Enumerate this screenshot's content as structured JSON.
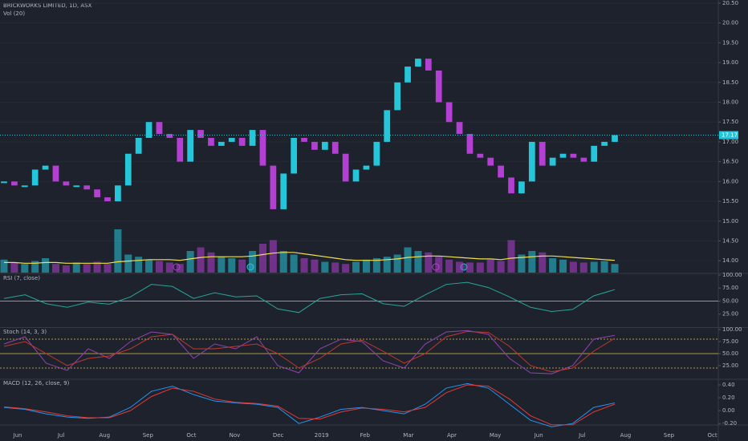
{
  "header": {
    "title": "BRICKWORKS LIMITED, 1D, ASX",
    "volume_label": "Vol (20)"
  },
  "x_axis": {
    "categories": [
      "Jun",
      "Jul",
      "Aug",
      "Sep",
      "Oct",
      "Nov",
      "Dec",
      "2019",
      "Feb",
      "Mar",
      "Apr",
      "May",
      "Jun",
      "Jul",
      "Aug",
      "Sep",
      "Oct"
    ]
  },
  "price": {
    "type": "candlestick",
    "ylim": [
      13.7,
      20.58
    ],
    "yticks": [
      {
        "value": 14,
        "label": "14.00"
      },
      {
        "value": 14.5,
        "label": "14.50"
      },
      {
        "value": 15,
        "label": "15.00"
      },
      {
        "value": 15.5,
        "label": "15.50"
      },
      {
        "value": 16,
        "label": "16.00"
      },
      {
        "value": 16.5,
        "label": "16.50"
      },
      {
        "value": 17,
        "label": "17.00"
      },
      {
        "value": 17.5,
        "label": "17.50"
      },
      {
        "value": 18,
        "label": "18.00"
      },
      {
        "value": 18.5,
        "label": "18.50"
      },
      {
        "value": 19,
        "label": "19.00"
      },
      {
        "value": 19.5,
        "label": "19.50"
      },
      {
        "value": 20,
        "label": "20.00"
      },
      {
        "value": 20.5,
        "label": "20.50"
      }
    ],
    "last": {
      "value": 17.17,
      "label": "17.17"
    },
    "up_color": "#26c6da",
    "down_color": "#b43fd3",
    "grid": true,
    "closes": [
      16.0,
      15.9,
      15.9,
      16.3,
      16.4,
      16.0,
      15.9,
      15.9,
      15.8,
      15.6,
      15.5,
      15.9,
      16.7,
      17.1,
      17.5,
      17.2,
      17.1,
      16.5,
      17.3,
      17.1,
      16.9,
      17.0,
      17.1,
      16.9,
      17.3,
      16.4,
      15.3,
      16.2,
      17.1,
      17.0,
      16.8,
      17.0,
      16.7,
      16.0,
      16.3,
      16.4,
      17.0,
      17.8,
      18.5,
      18.9,
      19.1,
      18.8,
      18.0,
      17.5,
      17.2,
      16.7,
      16.6,
      16.4,
      16.1,
      15.7,
      16.0,
      17.0,
      16.4,
      16.6,
      16.7,
      16.6,
      16.5,
      16.9,
      17.0,
      17.17
    ],
    "volume": [
      18,
      14,
      12,
      16,
      20,
      12,
      10,
      14,
      12,
      15,
      12,
      60,
      25,
      22,
      18,
      16,
      14,
      12,
      30,
      35,
      28,
      22,
      20,
      18,
      30,
      40,
      45,
      30,
      25,
      20,
      18,
      15,
      14,
      12,
      15,
      18,
      20,
      22,
      25,
      35,
      30,
      28,
      22,
      18,
      15,
      14,
      14,
      18,
      16,
      45,
      25,
      30,
      28,
      20,
      18,
      15,
      14,
      15,
      16,
      12
    ],
    "volume_ma": [
      14,
      14,
      13,
      13,
      14,
      14,
      13,
      13,
      13,
      13,
      13,
      15,
      16,
      17,
      18,
      18,
      18,
      17,
      19,
      21,
      22,
      22,
      22,
      22,
      23,
      25,
      27,
      28,
      28,
      26,
      24,
      22,
      20,
      18,
      17,
      17,
      17,
      18,
      19,
      21,
      22,
      23,
      23,
      22,
      21,
      20,
      19,
      19,
      18,
      20,
      21,
      22,
      23,
      23,
      22,
      21,
      20,
      19,
      18,
      17
    ],
    "volume_ma_color": "#f0e14a"
  },
  "rsi": {
    "type": "line",
    "label": "RSI (7, close)",
    "ylim": [
      0,
      101.5
    ],
    "yticks": [
      {
        "value": 25,
        "label": "25.00"
      },
      {
        "value": 50,
        "label": "50.00"
      },
      {
        "value": 75,
        "label": "75.00"
      },
      {
        "value": 100,
        "label": "100.00"
      }
    ],
    "levels": [
      50
    ],
    "level_color": "#d8c14a",
    "series": [
      {
        "color": "#26a69a",
        "values": [
          55,
          62,
          45,
          38,
          48,
          44,
          58,
          82,
          78,
          55,
          66,
          58,
          60,
          35,
          28,
          55,
          62,
          64,
          45,
          40,
          62,
          82,
          86,
          76,
          58,
          38,
          30,
          34,
          60,
          72
        ]
      }
    ]
  },
  "stoch": {
    "type": "line",
    "label": "Stoch (14, 3, 3)",
    "ylim": [
      -1.7,
      101.7
    ],
    "yticks": [
      {
        "value": 25,
        "label": "25.00"
      },
      {
        "value": 50,
        "label": "50.00"
      },
      {
        "value": 75,
        "label": "75.00"
      },
      {
        "value": 100,
        "label": "100.00"
      }
    ],
    "levels": [
      20,
      50,
      80
    ],
    "level_color": "#d8c14a",
    "series": [
      {
        "color": "#8e44ad",
        "values": [
          70,
          85,
          30,
          15,
          60,
          40,
          75,
          95,
          90,
          40,
          70,
          60,
          85,
          25,
          10,
          60,
          80,
          75,
          35,
          20,
          70,
          95,
          98,
          90,
          40,
          10,
          8,
          25,
          80,
          88
        ]
      },
      {
        "color": "#c0392b",
        "values": [
          65,
          75,
          50,
          25,
          40,
          45,
          60,
          85,
          90,
          60,
          60,
          65,
          70,
          50,
          20,
          40,
          70,
          78,
          55,
          30,
          50,
          85,
          96,
          94,
          65,
          25,
          12,
          20,
          55,
          82
        ]
      }
    ]
  },
  "macd": {
    "type": "line",
    "label": "MACD (12, 26, close, 9)",
    "ylim": [
      -0.21,
      0.475
    ],
    "yticks": [
      {
        "value": -0.2,
        "label": "-0.20"
      },
      {
        "value": 0,
        "label": "0.00"
      },
      {
        "value": 0.2,
        "label": "0.20"
      },
      {
        "value": 0.4,
        "label": "0.40"
      }
    ],
    "levels": [],
    "level_color": "#d8c14a",
    "series": [
      {
        "color": "#2196f3",
        "values": [
          0.05,
          0.02,
          -0.05,
          -0.1,
          -0.12,
          -0.1,
          0.05,
          0.3,
          0.38,
          0.25,
          0.15,
          0.12,
          0.1,
          0.05,
          -0.2,
          -0.1,
          0.02,
          0.05,
          0.0,
          -0.05,
          0.1,
          0.35,
          0.42,
          0.35,
          0.1,
          -0.15,
          -0.25,
          -0.2,
          0.05,
          0.12
        ]
      },
      {
        "color": "#e53935",
        "values": [
          0.06,
          0.03,
          -0.02,
          -0.08,
          -0.11,
          -0.11,
          0.0,
          0.22,
          0.35,
          0.3,
          0.18,
          0.13,
          0.11,
          0.07,
          -0.12,
          -0.13,
          -0.02,
          0.04,
          0.02,
          -0.02,
          0.05,
          0.28,
          0.4,
          0.38,
          0.18,
          -0.08,
          -0.22,
          -0.22,
          -0.02,
          0.1
        ]
      }
    ]
  }
}
